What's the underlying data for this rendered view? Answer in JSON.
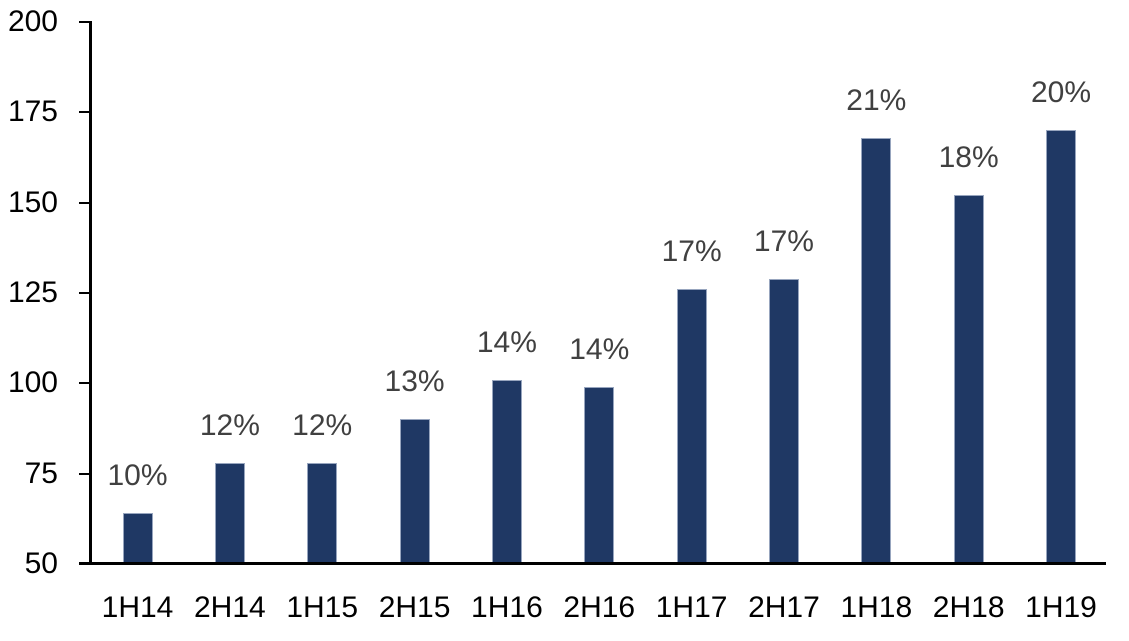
{
  "chart_data": {
    "type": "bar",
    "title": "",
    "xlabel": "",
    "ylabel": "",
    "categories": [
      "1H14",
      "2H14",
      "1H15",
      "2H15",
      "1H16",
      "2H16",
      "1H17",
      "2H17",
      "1H18",
      "2H18",
      "1H19"
    ],
    "values": [
      64,
      78,
      78,
      90,
      101,
      99,
      126,
      129,
      168,
      152,
      170
    ],
    "bar_labels": [
      "10%",
      "12%",
      "12%",
      "13%",
      "14%",
      "14%",
      "17%",
      "17%",
      "21%",
      "18%",
      "20%"
    ],
    "ylim": [
      50,
      200
    ],
    "yticks": [
      50,
      75,
      100,
      125,
      150,
      175,
      200
    ],
    "grid": false,
    "legend": null,
    "colors": {
      "bar_fill": "#1F3864",
      "bar_edge": "#97A5BE",
      "data_label": "#404040",
      "axis_line": "#000000",
      "tick_label": "#000000",
      "background": "#FFFFFF"
    }
  }
}
